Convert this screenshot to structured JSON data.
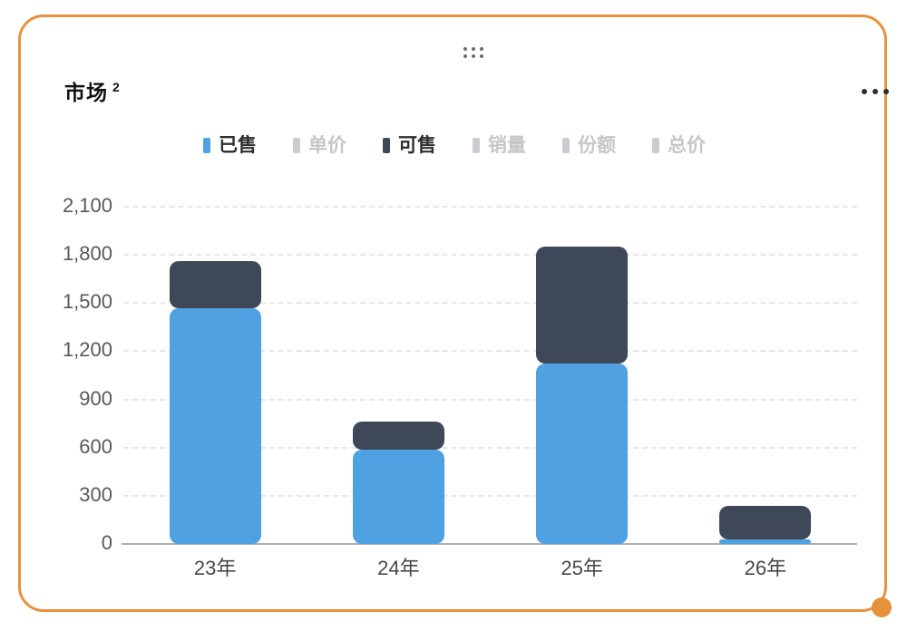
{
  "card": {
    "border_color": "#E8913C",
    "background": "#FFFFFF"
  },
  "header": {
    "title": "市场",
    "title_superscript": "2"
  },
  "controls": {
    "drag_handle_icon": "six-dot-grip",
    "menu_icon": "horizontal-ellipsis",
    "resize_handle_icon": "orange-corner-dot"
  },
  "legend": {
    "items": [
      {
        "label": "已售",
        "swatch_color": "#4FA1E1",
        "text_color": "#2E2E2E",
        "active": true
      },
      {
        "label": "单价",
        "swatch_color": "#C9CDD2",
        "text_color": "#C6C6C6",
        "active": false
      },
      {
        "label": "可售",
        "swatch_color": "#3E4859",
        "text_color": "#2E2E2E",
        "active": true
      },
      {
        "label": "销量",
        "swatch_color": "#C9CDD2",
        "text_color": "#C6C6C6",
        "active": false
      },
      {
        "label": "份额",
        "swatch_color": "#C9CDD2",
        "text_color": "#C6C6C6",
        "active": false
      },
      {
        "label": "总价",
        "swatch_color": "#C9CDD2",
        "text_color": "#C6C6C6",
        "active": false
      }
    ]
  },
  "chart_data": {
    "type": "bar",
    "stacked": true,
    "title": "市场 2",
    "categories": [
      "23年",
      "24年",
      "25年",
      "26年"
    ],
    "series": [
      {
        "name": "已售",
        "color": "#4FA1E1",
        "values": [
          1470,
          585,
          1125,
          30
        ]
      },
      {
        "name": "可售",
        "color": "#3E4859",
        "values": [
          290,
          180,
          725,
          210
        ]
      }
    ],
    "stack_totals": [
      1760,
      765,
      1850,
      240
    ],
    "inactive_series": [
      "单价",
      "销量",
      "份额",
      "总价"
    ],
    "xlabel": "",
    "ylabel": "",
    "ylim": [
      0,
      2100
    ],
    "yticks": [
      0,
      300,
      600,
      900,
      1200,
      1500,
      1800,
      2100
    ],
    "ytick_labels": [
      "0",
      "300",
      "600",
      "900",
      "1,200",
      "1,500",
      "1,800",
      "2,100"
    ],
    "grid": "horizontal-dashed",
    "legend_position": "top",
    "axis_text_color": "#58595B",
    "gridline_color": "#E4E6E8",
    "baseline_color": "#AFAFB1"
  }
}
